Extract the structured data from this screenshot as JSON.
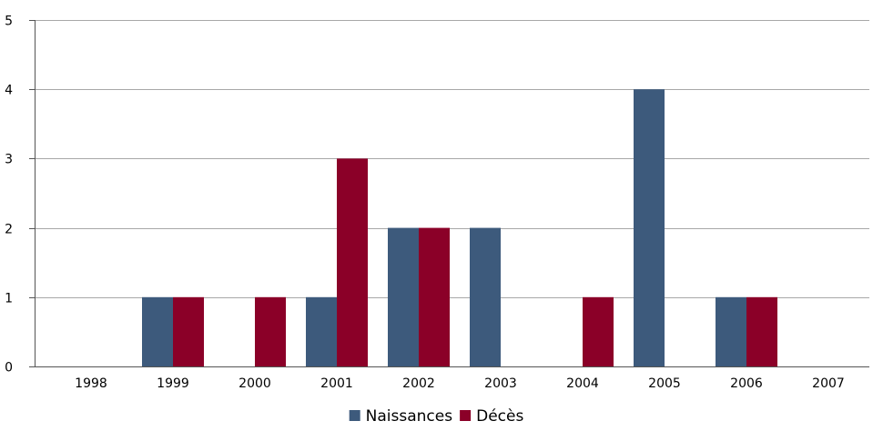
{
  "chart_data": {
    "type": "bar",
    "title": "",
    "xlabel": "",
    "ylabel": "",
    "categories": [
      "1998",
      "1999",
      "2000",
      "2001",
      "2002",
      "2003",
      "2004",
      "2005",
      "2006",
      "2007"
    ],
    "series": [
      {
        "name": "Naissances",
        "color": "#3d5a7c",
        "values": [
          0,
          1,
          0,
          1,
          2,
          2,
          0,
          4,
          1,
          0
        ]
      },
      {
        "name": "Décès",
        "color": "#8b0028",
        "values": [
          0,
          1,
          1,
          3,
          2,
          0,
          1,
          0,
          1,
          0
        ]
      }
    ],
    "ylim": [
      0,
      5
    ],
    "yticks": [
      "0",
      "1",
      "2",
      "3",
      "4",
      "5"
    ],
    "grid": true,
    "legend_position": "bottom-center"
  }
}
